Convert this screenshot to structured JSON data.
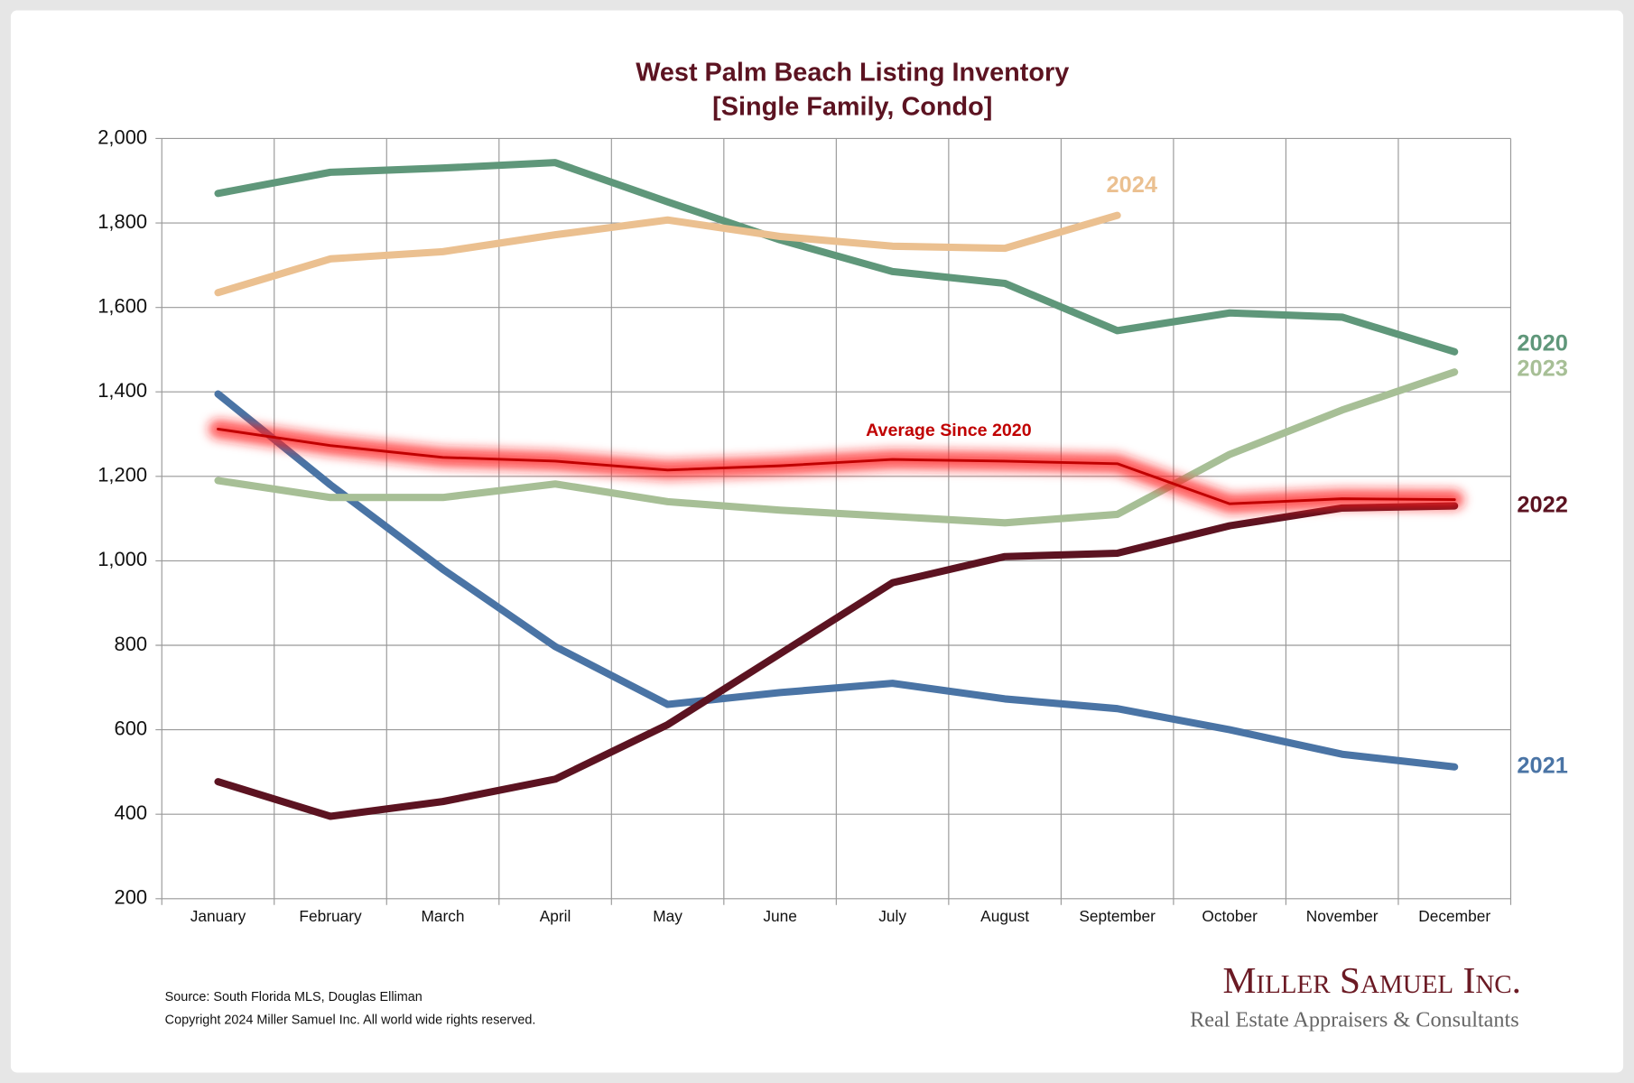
{
  "chart_data": {
    "type": "line",
    "title": "West Palm Beach Listing Inventory",
    "subtitle": "[Single Family, Condo]",
    "categories": [
      "January",
      "February",
      "March",
      "April",
      "May",
      "June",
      "July",
      "August",
      "September",
      "October",
      "November",
      "December"
    ],
    "series": [
      {
        "name": "2020",
        "color": "#5f977a",
        "values": [
          1870,
          1920,
          1930,
          1943,
          1850,
          1760,
          1685,
          1657,
          1545,
          1587,
          1577,
          1495
        ]
      },
      {
        "name": "2024",
        "color": "#ebc090",
        "values": [
          1635,
          1715,
          1732,
          1772,
          1807,
          1768,
          1745,
          1740,
          1818,
          null,
          null,
          null
        ]
      },
      {
        "name": "2021",
        "color": "#4a74a5",
        "values": [
          1395,
          1180,
          980,
          797,
          660,
          688,
          710,
          673,
          650,
          600,
          542,
          512
        ]
      },
      {
        "name": "2022",
        "color": "#5c1321",
        "values": [
          477,
          395,
          430,
          483,
          612,
          780,
          948,
          1010,
          1018,
          1083,
          1125,
          1130
        ]
      },
      {
        "name": "2023",
        "color": "#a7bf96",
        "values": [
          1190,
          1150,
          1150,
          1182,
          1140,
          1120,
          1105,
          1090,
          1110,
          1252,
          1357,
          1447
        ]
      },
      {
        "name": "Average  Since 2020",
        "color": "#c00000",
        "values": [
          1312,
          1273,
          1245,
          1236,
          1215,
          1225,
          1240,
          1236,
          1230,
          1135,
          1147,
          1145
        ]
      }
    ],
    "ylim": [
      200,
      2000
    ],
    "yticks": [
      {
        "value": 2000,
        "label": "2,000"
      },
      {
        "value": 1800,
        "label": "1,800"
      },
      {
        "value": 1600,
        "label": "1,600"
      },
      {
        "value": 1400,
        "label": "1,400"
      },
      {
        "value": 1200,
        "label": "1,200"
      },
      {
        "value": 1000,
        "label": "1,000"
      },
      800,
      600,
      400,
      200
    ],
    "grid": true,
    "source": "Source: South Florida MLS, Douglas Elliman",
    "copyright": "Copyright 2024 Miller Samuel Inc.  All world wide rights reserved.",
    "logo": {
      "name": "Miller Samuel Inc.",
      "tagline": "Real Estate Appraisers & Consultants"
    }
  }
}
